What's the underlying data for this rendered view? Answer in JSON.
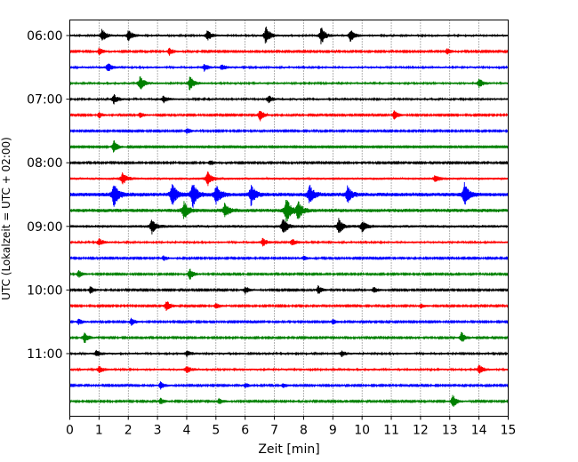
{
  "chart_data": {
    "type": "line",
    "title": "",
    "xlabel": "Zeit  [min]",
    "ylabel": "UTC (Lokalzeit = UTC + 02:00)",
    "xlim": [
      0,
      15
    ],
    "x_ticks": [
      0,
      1,
      2,
      3,
      4,
      5,
      6,
      7,
      8,
      9,
      10,
      11,
      12,
      13,
      14,
      15
    ],
    "x_grid": true,
    "grid_style": "dotted",
    "y_ticks": [
      {
        "label": "06:00",
        "row": 0
      },
      {
        "label": "07:00",
        "row": 4
      },
      {
        "label": "08:00",
        "row": 8
      },
      {
        "label": "09:00",
        "row": 12
      },
      {
        "label": "10:00",
        "row": 16
      },
      {
        "label": "11:00",
        "row": 20
      }
    ],
    "series_colors": [
      "#000000",
      "#ff0000",
      "#0000ff",
      "#008000"
    ],
    "rows": [
      {
        "start": "06:00",
        "color": "#000000",
        "amplitude": 0.35,
        "events": [
          {
            "t": 1.1,
            "a": 1.0
          },
          {
            "t": 2.0,
            "a": 1.0
          },
          {
            "t": 4.7,
            "a": 0.9
          },
          {
            "t": 6.7,
            "a": 1.6
          },
          {
            "t": 8.6,
            "a": 1.5
          },
          {
            "t": 9.6,
            "a": 1.0
          }
        ]
      },
      {
        "start": "06:15",
        "color": "#ff0000",
        "amplitude": 0.3,
        "events": [
          {
            "t": 1.0,
            "a": 0.6
          },
          {
            "t": 3.4,
            "a": 0.6
          },
          {
            "t": 12.9,
            "a": 0.5
          }
        ]
      },
      {
        "start": "06:30",
        "color": "#0000ff",
        "amplitude": 0.35,
        "events": [
          {
            "t": 1.3,
            "a": 0.8
          },
          {
            "t": 4.6,
            "a": 0.6
          },
          {
            "t": 5.2,
            "a": 0.5
          }
        ]
      },
      {
        "start": "06:45",
        "color": "#008000",
        "amplitude": 0.35,
        "events": [
          {
            "t": 2.4,
            "a": 1.3
          },
          {
            "t": 4.1,
            "a": 1.2
          },
          {
            "t": 14.0,
            "a": 0.8
          }
        ]
      },
      {
        "start": "07:00",
        "color": "#000000",
        "amplitude": 0.35,
        "events": [
          {
            "t": 1.5,
            "a": 0.8
          },
          {
            "t": 3.2,
            "a": 0.6
          },
          {
            "t": 6.8,
            "a": 0.6
          }
        ]
      },
      {
        "start": "07:15",
        "color": "#ff0000",
        "amplitude": 0.3,
        "events": [
          {
            "t": 1.0,
            "a": 0.5
          },
          {
            "t": 2.4,
            "a": 0.5
          },
          {
            "t": 6.5,
            "a": 1.0
          },
          {
            "t": 11.1,
            "a": 0.8
          }
        ]
      },
      {
        "start": "07:30",
        "color": "#0000ff",
        "amplitude": 0.3,
        "events": [
          {
            "t": 4.0,
            "a": 0.5
          }
        ]
      },
      {
        "start": "07:45",
        "color": "#008000",
        "amplitude": 0.25,
        "events": [
          {
            "t": 1.5,
            "a": 1.2
          }
        ]
      },
      {
        "start": "08:00",
        "color": "#000000",
        "amplitude": 0.3,
        "events": [
          {
            "t": 4.8,
            "a": 0.4
          }
        ]
      },
      {
        "start": "08:15",
        "color": "#ff0000",
        "amplitude": 0.45,
        "events": [
          {
            "t": 1.8,
            "a": 1.0
          },
          {
            "t": 4.7,
            "a": 1.3
          },
          {
            "t": 12.5,
            "a": 0.6
          }
        ]
      },
      {
        "start": "08:30",
        "color": "#0000ff",
        "amplitude": 0.7,
        "events": [
          {
            "t": 1.5,
            "a": 2.2
          },
          {
            "t": 3.5,
            "a": 2.0
          },
          {
            "t": 4.2,
            "a": 2.2
          },
          {
            "t": 5.0,
            "a": 1.7
          },
          {
            "t": 6.2,
            "a": 1.8
          },
          {
            "t": 8.2,
            "a": 1.6
          },
          {
            "t": 9.5,
            "a": 1.4
          },
          {
            "t": 13.5,
            "a": 2.0
          }
        ]
      },
      {
        "start": "08:45",
        "color": "#008000",
        "amplitude": 0.65,
        "events": [
          {
            "t": 3.9,
            "a": 1.5
          },
          {
            "t": 5.3,
            "a": 1.2
          },
          {
            "t": 7.4,
            "a": 2.4
          },
          {
            "t": 7.8,
            "a": 1.6
          }
        ]
      },
      {
        "start": "09:00",
        "color": "#000000",
        "amplitude": 0.5,
        "events": [
          {
            "t": 2.8,
            "a": 1.2
          },
          {
            "t": 7.3,
            "a": 1.4
          },
          {
            "t": 9.2,
            "a": 1.3
          },
          {
            "t": 10.0,
            "a": 0.9
          }
        ]
      },
      {
        "start": "09:15",
        "color": "#ff0000",
        "amplitude": 0.35,
        "events": [
          {
            "t": 1.0,
            "a": 0.6
          },
          {
            "t": 6.6,
            "a": 0.7
          },
          {
            "t": 7.6,
            "a": 0.6
          }
        ]
      },
      {
        "start": "09:30",
        "color": "#0000ff",
        "amplitude": 0.3,
        "events": [
          {
            "t": 3.2,
            "a": 0.4
          },
          {
            "t": 8.0,
            "a": 0.4
          }
        ]
      },
      {
        "start": "09:45",
        "color": "#008000",
        "amplitude": 0.3,
        "events": [
          {
            "t": 0.3,
            "a": 0.6
          },
          {
            "t": 4.1,
            "a": 1.0
          }
        ]
      },
      {
        "start": "10:00",
        "color": "#000000",
        "amplitude": 0.3,
        "events": [
          {
            "t": 0.7,
            "a": 0.6
          },
          {
            "t": 6.0,
            "a": 0.6
          },
          {
            "t": 8.5,
            "a": 0.7
          },
          {
            "t": 10.4,
            "a": 0.6
          }
        ]
      },
      {
        "start": "10:15",
        "color": "#ff0000",
        "amplitude": 0.3,
        "events": [
          {
            "t": 3.3,
            "a": 1.0
          },
          {
            "t": 5.0,
            "a": 0.5
          },
          {
            "t": 12.0,
            "a": 0.4
          }
        ]
      },
      {
        "start": "10:30",
        "color": "#0000ff",
        "amplitude": 0.3,
        "events": [
          {
            "t": 0.3,
            "a": 0.5
          },
          {
            "t": 2.1,
            "a": 0.6
          },
          {
            "t": 9.0,
            "a": 0.4
          }
        ]
      },
      {
        "start": "10:45",
        "color": "#008000",
        "amplitude": 0.3,
        "events": [
          {
            "t": 0.5,
            "a": 0.9
          },
          {
            "t": 13.4,
            "a": 0.9
          }
        ]
      },
      {
        "start": "11:00",
        "color": "#000000",
        "amplitude": 0.35,
        "events": [
          {
            "t": 0.9,
            "a": 0.6
          },
          {
            "t": 4.0,
            "a": 0.5
          },
          {
            "t": 9.3,
            "a": 0.5
          }
        ]
      },
      {
        "start": "11:15",
        "color": "#ff0000",
        "amplitude": 0.35,
        "events": [
          {
            "t": 1.0,
            "a": 0.6
          },
          {
            "t": 4.0,
            "a": 0.6
          },
          {
            "t": 14.0,
            "a": 0.8
          }
        ]
      },
      {
        "start": "11:30",
        "color": "#0000ff",
        "amplitude": 0.3,
        "events": [
          {
            "t": 3.1,
            "a": 0.6
          },
          {
            "t": 6.0,
            "a": 0.4
          },
          {
            "t": 7.3,
            "a": 0.4
          }
        ]
      },
      {
        "start": "11:45",
        "color": "#008000",
        "amplitude": 0.3,
        "events": [
          {
            "t": 3.1,
            "a": 0.5
          },
          {
            "t": 5.1,
            "a": 0.5
          },
          {
            "t": 13.1,
            "a": 1.1
          }
        ]
      }
    ]
  }
}
